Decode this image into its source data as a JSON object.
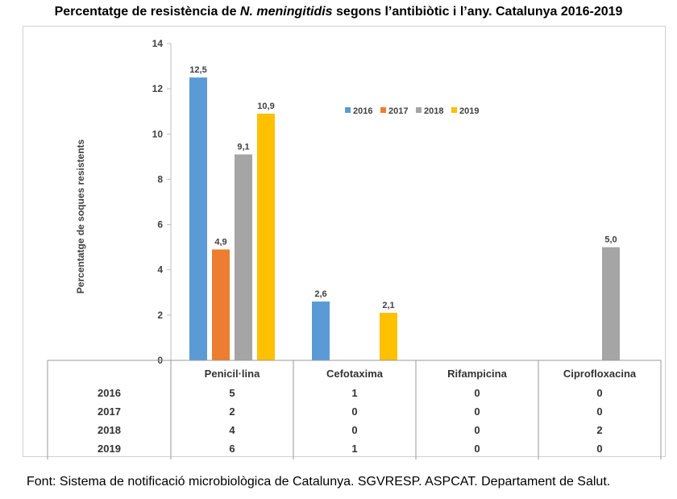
{
  "title": {
    "prefix": "Percentatge de resistència de ",
    "italic": "N. meningitidis",
    "suffix": " segons l’antibiòtic i l’any. Catalunya 2016-2019"
  },
  "source": "Font: Sistema de notificació microbiològica de Catalunya. SGVRESP. ASPCAT. Departament de Salut.",
  "chart_data": {
    "type": "bar",
    "title": "Percentatge de resistència de N. meningitidis segons l’antibiòtic i l’any. Catalunya 2016-2019",
    "ylabel": "Percentatge de soques resistents",
    "xlabel": "",
    "ylim": [
      0,
      14
    ],
    "yticks": [
      0,
      2,
      4,
      6,
      8,
      10,
      12,
      14
    ],
    "grid": false,
    "legend_position": "top-right",
    "categories": [
      "Penicil·lina",
      "Cefotaxima",
      "Rifampicina",
      "Ciprofloxacina"
    ],
    "series": [
      {
        "name": "2016",
        "color": "#5b9bd5",
        "values": [
          12.5,
          2.6,
          0,
          0
        ],
        "labels": [
          "12,5",
          "2,6",
          "",
          ""
        ],
        "table": [
          "5",
          "1",
          "0",
          "0"
        ]
      },
      {
        "name": "2017",
        "color": "#ed7d31",
        "values": [
          4.9,
          0,
          0,
          0
        ],
        "labels": [
          "4,9",
          "",
          "",
          ""
        ],
        "table": [
          "2",
          "0",
          "0",
          "0"
        ]
      },
      {
        "name": "2018",
        "color": "#a5a5a5",
        "values": [
          9.1,
          0,
          0,
          5.0
        ],
        "labels": [
          "9,1",
          "",
          "",
          "5,0"
        ],
        "table": [
          "4",
          "0",
          "0",
          "2"
        ]
      },
      {
        "name": "2019",
        "color": "#ffc000",
        "values": [
          10.9,
          2.1,
          0,
          0
        ],
        "labels": [
          "10,9",
          "2,1",
          "",
          ""
        ],
        "table": [
          "6",
          "1",
          "0",
          "0"
        ]
      }
    ]
  }
}
